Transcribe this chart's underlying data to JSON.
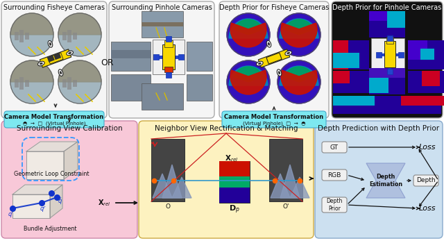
{
  "top_row": {
    "panel1_title": "Surrounding Fisheye Cameras",
    "panel2_title": "Surrounding Pinhole Cameras",
    "panel3_title": "Depth Prior for Fisheye Cameras",
    "panel4_title": "Depth Prior for Pinhole Cameras",
    "or_text": "OR",
    "transform_text": "Camera Model Transformation",
    "transform_sub1": "◓  →  □  (Virtual Pinhole)",
    "transform_sub2": "(Virtual Pinhole)  □  →  ◓",
    "transform_box_color": "#7de8f0"
  },
  "bottom_row": {
    "panel1_title": "Surrounding View Calibration",
    "panel2_title": "Neighbor View Rectification & Matching",
    "panel3_title": "Depth Prediction with Depth Prior",
    "panel1_bg": "#f8c8d8",
    "panel2_bg": "#fdf2c0",
    "panel3_bg": "#cce0f0",
    "loop_constraint_text": "Geometric Loop Constraint",
    "bundle_adj_text": "Bundle Adjustment"
  },
  "fig_bg": "#ffffff"
}
